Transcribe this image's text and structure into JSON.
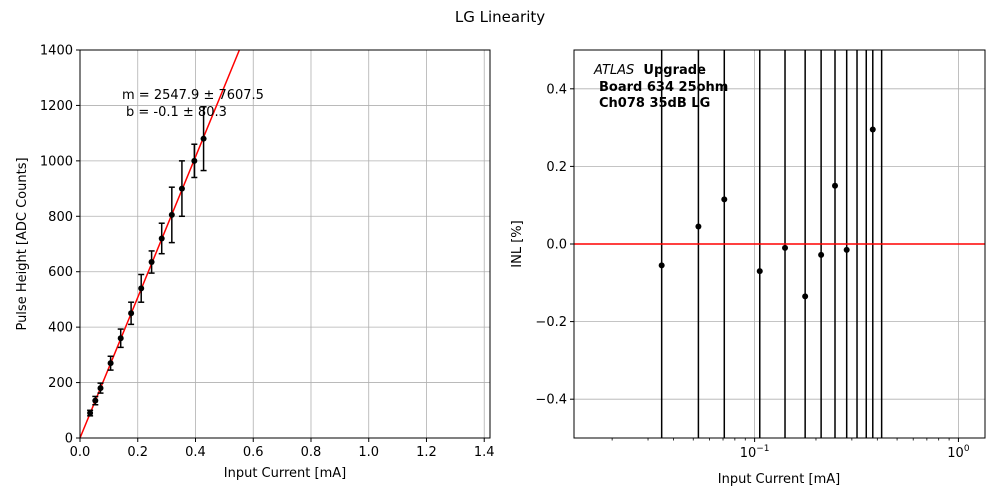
{
  "figure": {
    "title": "LG Linearity"
  },
  "colors": {
    "fit_line": "#ff0000",
    "points": "#000000",
    "grid": "#b0b0b0",
    "zero_line": "#ff0000"
  },
  "chart_data": [
    {
      "type": "scatter",
      "xlabel": "Input Current [mA]",
      "ylabel": "Pulse Height [ADC Counts]",
      "xlim": [
        0,
        1.42
      ],
      "ylim": [
        0,
        1400
      ],
      "x_scale": "linear",
      "x_ticks": [
        "0.0",
        "0.2",
        "0.4",
        "0.6",
        "0.8",
        "1.0",
        "1.2",
        "1.4"
      ],
      "y_ticks": [
        "0",
        "200",
        "400",
        "600",
        "800",
        "1000",
        "1200",
        "1400"
      ],
      "grid": true,
      "annotations": [
        "m = 2547.9 ± 7607.5",
        "b = -0.1 ± 80.3"
      ],
      "series": [
        {
          "x": [
            0.035,
            0.053,
            0.071,
            0.106,
            0.141,
            0.177,
            0.212,
            0.248,
            0.283,
            0.318,
            0.353,
            0.396,
            0.428
          ],
          "y": [
            90,
            135,
            180,
            270,
            360,
            450,
            540,
            635,
            720,
            805,
            900,
            1000,
            1080
          ],
          "yerr": [
            10,
            15,
            18,
            25,
            33,
            40,
            50,
            40,
            55,
            100,
            100,
            60,
            115
          ]
        }
      ],
      "fit_line": {
        "x": [
          0,
          0.552
        ],
        "y": [
          0,
          1400
        ]
      }
    },
    {
      "type": "scatter",
      "xlabel": "Input Current [mA]",
      "ylabel": "INL [%]",
      "x_scale": "log",
      "xlim": [
        0.013,
        1.35
      ],
      "ylim": [
        -0.5,
        0.5
      ],
      "x_ticks": [
        {
          "value": 0.1,
          "base": "10",
          "exp": "−1"
        },
        {
          "value": 1,
          "base": "10",
          "exp": "0"
        }
      ],
      "y_ticks": [
        "−0.4",
        "−0.2",
        "0.0",
        "0.2",
        "0.4"
      ],
      "grid": true,
      "annotations": {
        "atlas": "ATLAS",
        "upgrade": "Upgrade",
        "board": "Board 634 25ohm",
        "channel": "Ch078 35dB LG"
      },
      "series": [
        {
          "x": [
            0.035,
            0.053,
            0.071,
            0.106,
            0.141,
            0.177,
            0.212,
            0.248,
            0.283,
            0.318,
            0.353,
            0.38,
            0.42
          ],
          "y": [
            -0.055,
            0.045,
            0.115,
            -0.07,
            -0.01,
            -0.135,
            -0.028,
            0.15,
            -0.015,
            null,
            null,
            0.295,
            null
          ]
        }
      ],
      "reference_line": {
        "y": 0
      }
    }
  ]
}
